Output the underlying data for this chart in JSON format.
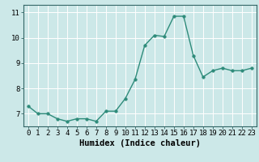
{
  "xlabel": "Humidex (Indice chaleur)",
  "x": [
    0,
    1,
    2,
    3,
    4,
    5,
    6,
    7,
    8,
    9,
    10,
    11,
    12,
    13,
    14,
    15,
    16,
    17,
    18,
    19,
    20,
    21,
    22,
    23
  ],
  "y": [
    7.3,
    7.0,
    7.0,
    6.8,
    6.7,
    6.8,
    6.8,
    6.7,
    7.1,
    7.1,
    7.6,
    8.35,
    9.7,
    10.1,
    10.05,
    10.85,
    10.85,
    9.3,
    8.45,
    8.7,
    8.8,
    8.7,
    8.7,
    8.8
  ],
  "line_color": "#2e8b7a",
  "marker_size": 2.5,
  "line_width": 1.0,
  "background_color": "#cce8e8",
  "grid_color": "#ffffff",
  "ylim": [
    6.5,
    11.3
  ],
  "xlim": [
    -0.5,
    23.5
  ],
  "yticks": [
    7,
    8,
    9,
    10,
    11
  ],
  "tick_fontsize": 6.5,
  "xlabel_fontsize": 7.5,
  "spine_color": "#336666"
}
